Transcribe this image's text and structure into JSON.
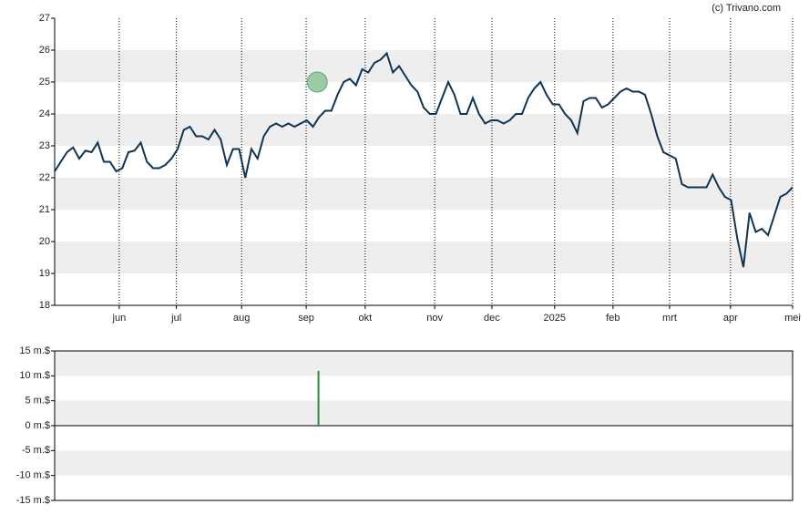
{
  "credit": "(c) Trivano.com",
  "chart_data": [
    {
      "type": "line",
      "series": [
        {
          "color": "#0d3455",
          "values": [
            22.2,
            22.5,
            22.8,
            22.95,
            22.6,
            22.85,
            22.8,
            23.1,
            22.5,
            22.5,
            22.2,
            22.3,
            22.8,
            22.85,
            23.1,
            22.5,
            22.3,
            22.3,
            22.4,
            22.6,
            22.9,
            23.5,
            23.6,
            23.3,
            23.3,
            23.2,
            23.5,
            23.2,
            22.4,
            22.9,
            22.9,
            22.0,
            22.9,
            22.6,
            23.3,
            23.6,
            23.7,
            23.6,
            23.7,
            23.6,
            23.7,
            23.8,
            23.6,
            23.9,
            24.1,
            24.1,
            24.6,
            25.0,
            25.1,
            24.9,
            25.4,
            25.3,
            25.6,
            25.7,
            25.9,
            25.3,
            25.5,
            25.2,
            24.9,
            24.7,
            24.2,
            24.0,
            24.0,
            24.5,
            25.0,
            24.6,
            24.0,
            24.0,
            24.5,
            24.0,
            23.7,
            23.8,
            23.8,
            23.7,
            23.8,
            24.0,
            24.0,
            24.5,
            24.8,
            25.0,
            24.6,
            24.3,
            24.3,
            24.0,
            23.8,
            23.4,
            24.4,
            24.5,
            24.5,
            24.2,
            24.3,
            24.5,
            24.7,
            24.8,
            24.7,
            24.7,
            24.6,
            24.0,
            23.3,
            22.8,
            22.7,
            22.6,
            21.8,
            21.7,
            21.7,
            21.7,
            21.7,
            22.1,
            21.7,
            21.4,
            21.3,
            20.1,
            19.2,
            20.9,
            20.3,
            20.4,
            20.2,
            20.8,
            21.4,
            21.5,
            21.7
          ]
        }
      ],
      "markers": [
        {
          "x": 42.7,
          "y": 25,
          "color": "#8fc79b"
        }
      ],
      "xlim": [
        0,
        120
      ],
      "xticks": [
        {
          "value": 10.5,
          "label": "jun"
        },
        {
          "value": 19.8,
          "label": "jul"
        },
        {
          "value": 30.4,
          "label": "aug"
        },
        {
          "value": 40.9,
          "label": "sep"
        },
        {
          "value": 50.5,
          "label": "okt"
        },
        {
          "value": 61.8,
          "label": "nov"
        },
        {
          "value": 71.1,
          "label": "dec"
        },
        {
          "value": 81.3,
          "label": "2025"
        },
        {
          "value": 90.8,
          "label": "feb"
        },
        {
          "value": 100,
          "label": "mrt"
        },
        {
          "value": 109.9,
          "label": "apr"
        },
        {
          "value": 120,
          "label": "mei"
        }
      ],
      "ylim": [
        18,
        27
      ],
      "yticks": [
        18,
        19,
        20,
        21,
        22,
        23,
        24,
        25,
        26,
        27
      ],
      "grid": "bands"
    },
    {
      "type": "bar",
      "x": [
        42.9
      ],
      "values": [
        11
      ],
      "color": "#2e8b3e",
      "xlim": [
        0,
        120
      ],
      "ylim": [
        -15,
        15
      ],
      "yticks": [
        {
          "value": 15,
          "label": "15 m.$"
        },
        {
          "value": 10,
          "label": "10 m.$"
        },
        {
          "value": 5,
          "label": "5 m.$"
        },
        {
          "value": 0,
          "label": "0 m.$"
        },
        {
          "value": -5,
          "label": "-5 m.$"
        },
        {
          "value": -10,
          "label": "-10 m.$"
        },
        {
          "value": -15,
          "label": "-15 m.$"
        }
      ],
      "grid": "bands"
    }
  ]
}
